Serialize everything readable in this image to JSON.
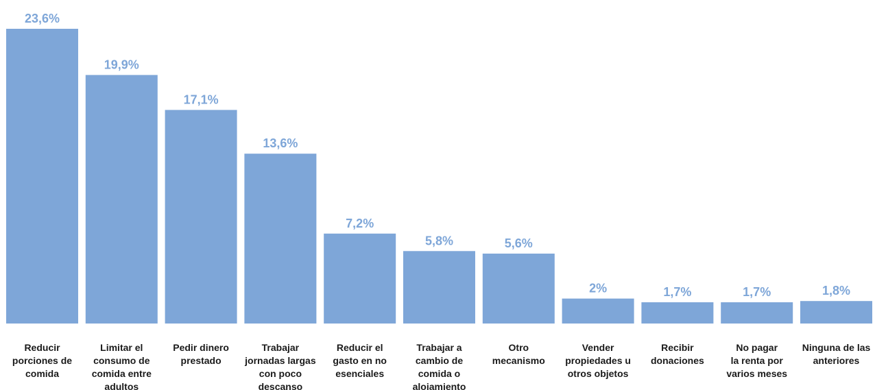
{
  "chart_data": {
    "type": "bar",
    "categories": [
      [
        "Reducir",
        "porciones de",
        "comida"
      ],
      [
        "Limitar el",
        "consumo de",
        "comida entre",
        "adultos"
      ],
      [
        "Pedir dinero",
        "prestado"
      ],
      [
        "Trabajar",
        "jornadas largas",
        "con poco",
        "descanso"
      ],
      [
        "Reducir el",
        "gasto en no",
        "esenciales"
      ],
      [
        "Trabajar a",
        "cambio de",
        "comida o",
        "alojamiento"
      ],
      [
        "Otro",
        "mecanismo"
      ],
      [
        "Vender",
        "propiedades u",
        "otros objetos"
      ],
      [
        "Recibir",
        "donaciones"
      ],
      [
        "No pagar",
        "la renta por",
        "varios meses"
      ],
      [
        "Ninguna de las",
        "anteriores"
      ]
    ],
    "values": [
      23.6,
      19.9,
      17.1,
      13.6,
      7.2,
      5.8,
      5.6,
      2.0,
      1.7,
      1.7,
      1.8
    ],
    "value_labels": [
      "23,6%",
      "19,9%",
      "17,1%",
      "13,6%",
      "7,2%",
      "5,8%",
      "5,6%",
      "2%",
      "1,7%",
      "1,7%",
      "1,8%"
    ],
    "title": "",
    "xlabel": "",
    "ylabel": "",
    "ylim": [
      0,
      23.6
    ],
    "grid": false,
    "colors": {
      "bar": "#7ea6d8",
      "value_label": "#7ea6d8",
      "category_label": "#1a1a1a"
    }
  }
}
